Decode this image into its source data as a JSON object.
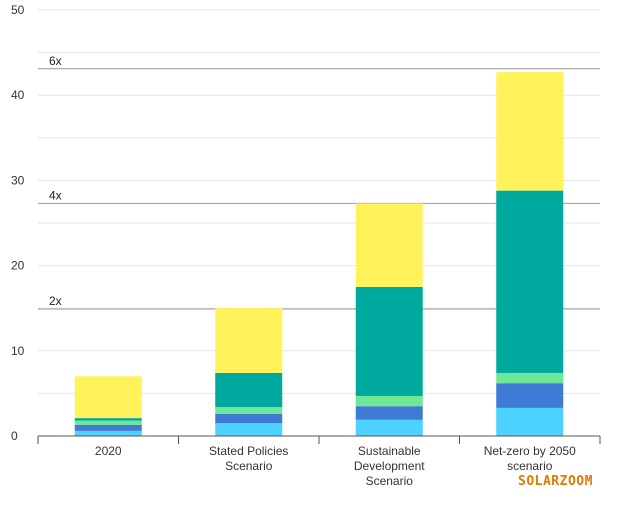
{
  "watermark": "SOLARZOOM",
  "colors": {
    "grid": "#e6e6e6",
    "axis": "#555555",
    "tick_text": "#333333",
    "ref_line": "#999999",
    "watermark": "#e07b00"
  },
  "chart_data": {
    "type": "bar",
    "stacked": true,
    "title": "",
    "xlabel": "",
    "ylabel": "",
    "ylim": [
      0,
      50
    ],
    "yticks": [
      0,
      10,
      20,
      30,
      40,
      50
    ],
    "grid": true,
    "categories": [
      [
        "2020"
      ],
      [
        "Stated Policies",
        "Scenario"
      ],
      [
        "Sustainable",
        "Development",
        "Scenario"
      ],
      [
        "Net-zero by 2050",
        "scenario"
      ]
    ],
    "series": [
      {
        "color": "#4dd2ff",
        "values": [
          0.6,
          1.5,
          1.9,
          3.3
        ]
      },
      {
        "color": "#3f7bd4",
        "values": [
          0.7,
          1.1,
          1.6,
          2.9
        ]
      },
      {
        "color": "#6ee896",
        "values": [
          0.5,
          0.8,
          1.2,
          1.2
        ]
      },
      {
        "color": "#00a99d",
        "values": [
          0.3,
          4.0,
          12.8,
          21.4
        ]
      },
      {
        "color": "#fff25a",
        "values": [
          4.9,
          7.6,
          9.8,
          13.9
        ]
      }
    ],
    "reference_lines": [
      {
        "label": "2x",
        "value": 14.9
      },
      {
        "label": "4x",
        "value": 27.3
      },
      {
        "label": "6x",
        "value": 43.1
      }
    ]
  }
}
